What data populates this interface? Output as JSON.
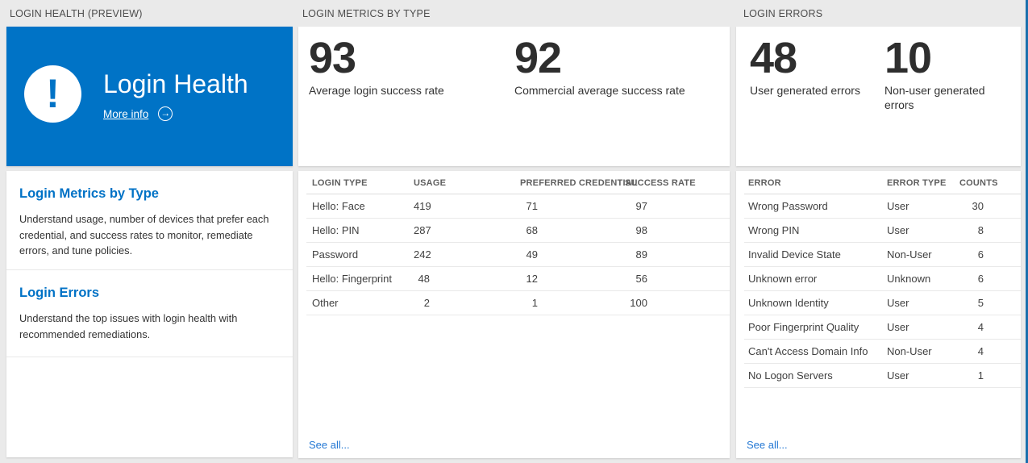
{
  "colors": {
    "background": "#eaeaea",
    "tile_blue": "#0073c6",
    "accent_blue": "#0072c6",
    "link_blue": "#2478d4",
    "edge_strip_blue": "#1a6fad"
  },
  "columns": {
    "health": {
      "header": "LOGIN HEALTH (PREVIEW)",
      "tile": {
        "title": "Login Health",
        "more_info_label": "More info",
        "icon": "exclamation-icon",
        "arrow_icon": "arrow-right-circle-icon",
        "arrow_glyph": "→"
      },
      "items": [
        {
          "title": "Login Metrics by Type",
          "description": "Understand usage, number of devices that prefer each credential, and success rates to monitor, remediate errors, and tune policies."
        },
        {
          "title": "Login Errors",
          "description": "Understand the top issues with login health with recommended remediations."
        }
      ]
    },
    "metrics": {
      "header": "LOGIN METRICS BY TYPE",
      "stats": [
        {
          "value": "93",
          "label": "Average login success rate"
        },
        {
          "value": "92",
          "label": "Commercial average success rate"
        }
      ],
      "table": {
        "columns": [
          "LOGIN TYPE",
          "USAGE",
          "PREFERRED CREDENTIAL",
          "SUCCESS RATE"
        ],
        "rows": [
          [
            "Hello: Face",
            "419",
            "71",
            "97"
          ],
          [
            "Hello: PIN",
            "287",
            "68",
            "98"
          ],
          [
            "Password",
            "242",
            "49",
            "89"
          ],
          [
            "Hello: Fingerprint",
            "48",
            "12",
            "56"
          ],
          [
            "Other",
            "2",
            "1",
            "100"
          ]
        ]
      },
      "see_all_label": "See all..."
    },
    "errors": {
      "header": "LOGIN ERRORS",
      "stats": [
        {
          "value": "48",
          "label": "User generated errors"
        },
        {
          "value": "10",
          "label": "Non-user generated errors"
        }
      ],
      "table": {
        "columns": [
          "ERROR",
          "ERROR TYPE",
          "COUNTS"
        ],
        "rows": [
          [
            "Wrong Password",
            "User",
            "30"
          ],
          [
            "Wrong PIN",
            "User",
            "8"
          ],
          [
            "Invalid Device State",
            "Non-User",
            "6"
          ],
          [
            "Unknown error",
            "Unknown",
            "6"
          ],
          [
            "Unknown Identity",
            "User",
            "5"
          ],
          [
            "Poor Fingerprint Quality",
            "User",
            "4"
          ],
          [
            "Can't Access Domain Info",
            "Non-User",
            "4"
          ],
          [
            "No Logon Servers",
            "User",
            "1"
          ]
        ]
      },
      "see_all_label": "See all..."
    }
  }
}
